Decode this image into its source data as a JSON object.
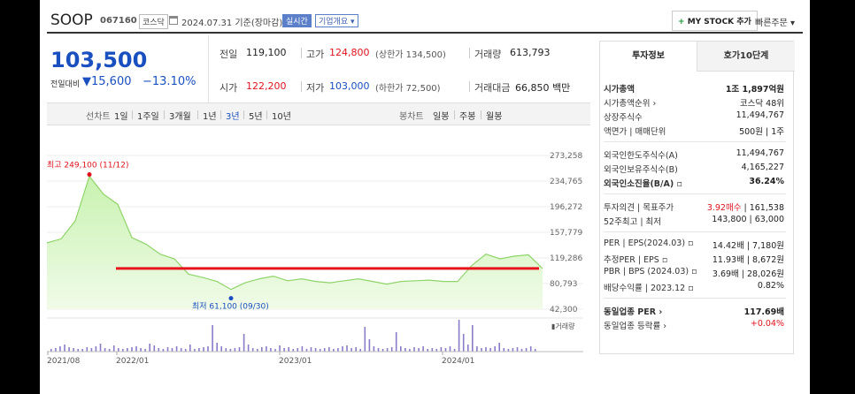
{
  "header": {
    "company_name": "SOOP",
    "code": "067160",
    "market": "코스닥",
    "date_text": "2024.07.31  기준(장마감)",
    "realtime_label": "실시간",
    "info_label": "기업개요 ▾",
    "mystock_label": "MY STOCK 추가",
    "quick_order_label": "빠른주문 ▾"
  },
  "price": {
    "current": "103,500",
    "change_label": "전일대비",
    "change_value": "▼15,600",
    "change_pct": "−13.10%"
  },
  "summary": {
    "prev_label": "전일",
    "prev_value": "119,100",
    "high_label": "고가",
    "high_value": "124,800",
    "upper_limit": "(상한가 134,500)",
    "volume_label": "거래량",
    "volume_value": "613,793",
    "open_label": "시가",
    "open_value": "122,200",
    "low_label": "저가",
    "low_value": "103,000",
    "lower_limit": "(하한가 72,500)",
    "amount_label": "거래대금",
    "amount_value": "66,850 백만"
  },
  "tabs": {
    "line_label": "선차트",
    "periods": [
      "1일",
      "1주일",
      "3개월",
      "1년",
      "3년",
      "5년",
      "10년"
    ],
    "active_period": "3년",
    "candle_label": "봉차트",
    "candles": [
      "일봉",
      "주봉",
      "월봉"
    ]
  },
  "chart_data": {
    "type": "area",
    "y_ticks": [
      "273,258",
      "234,765",
      "196,272",
      "157,779",
      "119,286",
      "80,793",
      "42,300"
    ],
    "ylim": [
      42300,
      273258
    ],
    "x_ticks": [
      "2021/08",
      "2022/01",
      "2023/01",
      "2024/01"
    ],
    "max_annotation": "최고 249,100 (11/12)",
    "min_annotation": "최저 61,100 (09/30)",
    "volume_label": "거래량",
    "reference_line_value": 103500,
    "colors": {
      "area": "#c8f2b0",
      "line": "#8fd46a",
      "ref_line": "#e8141c",
      "volume": "#8b7bc9"
    },
    "x": [
      "2021-08",
      "2021-09",
      "2021-10",
      "2021-11",
      "2021-12",
      "2022-01",
      "2022-02",
      "2022-03",
      "2022-04",
      "2022-05",
      "2022-06",
      "2022-07",
      "2022-08",
      "2022-09",
      "2022-10",
      "2022-11",
      "2022-12",
      "2023-01",
      "2023-02",
      "2023-03",
      "2023-04",
      "2023-05",
      "2023-06",
      "2023-07",
      "2023-08",
      "2023-09",
      "2023-10",
      "2023-11",
      "2023-12",
      "2024-01",
      "2024-02",
      "2024-03",
      "2024-04",
      "2024-05",
      "2024-06",
      "2024-07"
    ],
    "values": [
      142000,
      148000,
      175000,
      242000,
      215000,
      200000,
      150000,
      140000,
      125000,
      118000,
      95000,
      90000,
      84000,
      72000,
      82000,
      88000,
      92000,
      85000,
      88000,
      84000,
      82000,
      85000,
      88000,
      84000,
      80000,
      84000,
      85000,
      86000,
      84000,
      84000,
      108000,
      125000,
      118000,
      122000,
      124000,
      103500
    ]
  },
  "right_panel": {
    "tab1": "투자정보",
    "tab2": "호가10단계",
    "rows1": [
      {
        "k": "시가총액",
        "v": "1조 1,897억원",
        "bold": true
      },
      {
        "k": "시가총액순위 ›",
        "v": "코스닥 48위"
      },
      {
        "k": "상장주식수",
        "v": "11,494,767"
      },
      {
        "k": "액면가 | 매매단위",
        "v": "500원 | 1주"
      }
    ],
    "rows2": [
      {
        "k": "외국인한도주식수(A)",
        "v": "11,494,767"
      },
      {
        "k": "외국인보유주식수(B)",
        "v": "4,165,227"
      },
      {
        "k": "외국인소진율(B/A) ▫",
        "v": "36.24%",
        "bold": true
      }
    ],
    "rows3": [
      {
        "k": "투자의견 | 목표주가",
        "v_red": "3.92매수",
        "v": " | 161,538"
      },
      {
        "k": "52주최고 | 최저",
        "v": "143,800 | 63,000"
      }
    ],
    "rows4": [
      {
        "k": "PER | EPS(2024.03) ▫",
        "v": "14.42배 | 7,180원"
      },
      {
        "k": "추정PER | EPS ▫",
        "v": "11.93배 | 8,672원"
      },
      {
        "k": "PBR | BPS (2024.03) ▫",
        "v": "3.69배 | 28,026원"
      },
      {
        "k": "배당수익률 | 2023.12 ▫",
        "v": "0.82%"
      }
    ],
    "rows5": [
      {
        "k": "동일업종 PER ›",
        "v": "117.69배",
        "bold": true
      },
      {
        "k": "동일업종 등락률 ›",
        "v_red": "+0.04%"
      }
    ]
  }
}
